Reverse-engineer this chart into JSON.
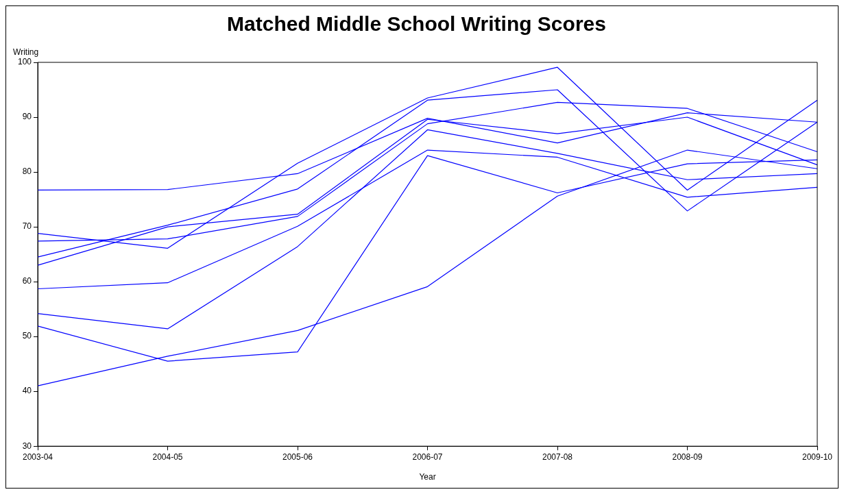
{
  "chart_data": {
    "type": "line",
    "title": "Matched Middle School Writing Scores",
    "xlabel": "Year",
    "ylabel": "Writing",
    "categories": [
      "2003-04",
      "2004-05",
      "2005-06",
      "2006-07",
      "2007-08",
      "2008-09",
      "2009-10"
    ],
    "series": [
      {
        "color": "#0000ff",
        "values": [
          76.7,
          76.8,
          79.7,
          89.8,
          85.3,
          90.8,
          89.1
        ]
      },
      {
        "color": "#0000ff",
        "values": [
          68.8,
          66.1,
          81.6,
          93.5,
          99.1,
          76.7,
          93.1
        ]
      },
      {
        "color": "#0000ff",
        "values": [
          67.4,
          67.8,
          71.9,
          88.8,
          92.7,
          91.6,
          83.7
        ]
      },
      {
        "color": "#0000ff",
        "values": [
          63.0,
          70.0,
          72.3,
          89.6,
          87.0,
          90.0,
          81.3
        ]
      },
      {
        "color": "#0000ff",
        "values": [
          64.5,
          70.3,
          76.9,
          93.1,
          95.0,
          72.9,
          89.1
        ]
      },
      {
        "color": "#0000ff",
        "values": [
          58.7,
          59.8,
          70.1,
          84.0,
          82.7,
          75.4,
          77.2
        ]
      },
      {
        "color": "#0000ff",
        "values": [
          54.2,
          51.4,
          66.4,
          87.7,
          83.4,
          78.6,
          79.7
        ]
      },
      {
        "color": "#0000ff",
        "values": [
          51.9,
          45.5,
          47.2,
          83.0,
          76.2,
          81.5,
          82.2
        ]
      },
      {
        "color": "#0000ff",
        "values": [
          41.0,
          46.4,
          51.1,
          59.1,
          75.6,
          84.0,
          80.6
        ]
      }
    ],
    "ylim": [
      30,
      100
    ],
    "yticks": [
      30,
      40,
      50,
      60,
      70,
      80,
      90,
      100
    ],
    "grid": false,
    "legend": false,
    "marker": "none",
    "line_style": "solid"
  }
}
